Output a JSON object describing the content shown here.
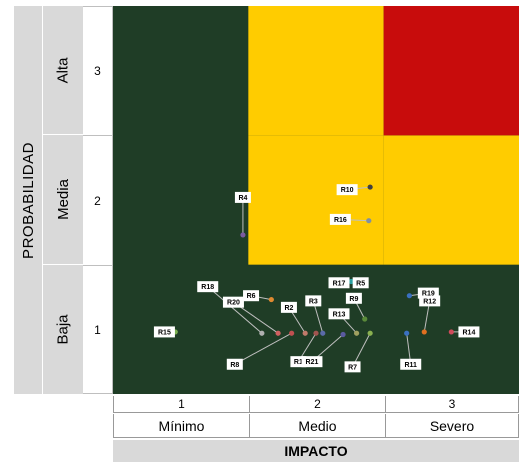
{
  "chart_data": {
    "type": "scatter",
    "ylabel": "PROBABILIDAD",
    "xlabel": "IMPACTO",
    "xlim": [
      0.5,
      3.5
    ],
    "ylim": [
      0.5,
      3.5
    ],
    "grid": false,
    "y_categories": [
      {
        "value": 3,
        "name": "Alta"
      },
      {
        "value": 2,
        "name": "Media"
      },
      {
        "value": 1,
        "name": "Baja"
      }
    ],
    "x_categories": [
      {
        "value": 1,
        "name": "Mínimo"
      },
      {
        "value": 2,
        "name": "Medio"
      },
      {
        "value": 3,
        "name": "Severo"
      }
    ],
    "zones": [
      {
        "color": "#1f3d26",
        "cells": "default"
      },
      {
        "color": "#ffcc00",
        "cells": [
          [
            2,
            2
          ],
          [
            3,
            2
          ],
          [
            2,
            3
          ]
        ]
      },
      {
        "color": "#c80c0c",
        "cells": [
          [
            3,
            3
          ]
        ]
      }
    ],
    "points": [
      {
        "label": "R1",
        "impact": 2.0,
        "prob": 0.97,
        "color": "#a0554f",
        "label_at": [
          1.87,
          0.75
        ]
      },
      {
        "label": "R2",
        "impact": 1.92,
        "prob": 0.97,
        "color": "#c07a6a",
        "label_at": [
          1.8,
          1.17
        ]
      },
      {
        "label": "R3",
        "impact": 2.05,
        "prob": 0.97,
        "color": "#5a6aa8",
        "label_at": [
          1.98,
          1.22
        ]
      },
      {
        "label": "R4",
        "impact": 1.46,
        "prob": 1.73,
        "color": "#7a5aa0",
        "label_at": [
          1.46,
          2.02
        ]
      },
      {
        "label": "R5",
        "impact": 2.26,
        "prob": 1.37,
        "color": "#2aa0a0",
        "label_at": [
          2.33,
          1.36
        ]
      },
      {
        "label": "R6",
        "impact": 1.67,
        "prob": 1.23,
        "color": "#e08a30",
        "label_at": [
          1.52,
          1.26
        ]
      },
      {
        "label": "R7",
        "impact": 2.4,
        "prob": 0.97,
        "color": "#8ab050",
        "label_at": [
          2.27,
          0.71
        ]
      },
      {
        "label": "R8",
        "impact": 1.82,
        "prob": 0.97,
        "color": "#c05050",
        "label_at": [
          1.4,
          0.73
        ]
      },
      {
        "label": "R9",
        "impact": 2.36,
        "prob": 1.08,
        "color": "#5a8a3a",
        "label_at": [
          2.28,
          1.24
        ]
      },
      {
        "label": "R10",
        "impact": 2.4,
        "prob": 2.1,
        "color": "#404040",
        "label_at": [
          2.23,
          2.08
        ]
      },
      {
        "label": "R11",
        "impact": 2.67,
        "prob": 0.97,
        "color": "#3a70c0",
        "label_at": [
          2.7,
          0.73
        ]
      },
      {
        "label": "R12",
        "impact": 2.8,
        "prob": 0.98,
        "color": "#e07020",
        "label_at": [
          2.84,
          1.22
        ]
      },
      {
        "label": "R13",
        "impact": 2.3,
        "prob": 0.97,
        "color": "#a0a060",
        "label_at": [
          2.17,
          1.12
        ]
      },
      {
        "label": "R14",
        "impact": 3.0,
        "prob": 0.98,
        "color": "#d04a5a",
        "label_at": [
          3.13,
          0.98
        ]
      },
      {
        "label": "R15",
        "impact": 0.96,
        "prob": 0.98,
        "color": "#7ab050",
        "label_at": [
          0.88,
          0.98
        ]
      },
      {
        "label": "R16",
        "impact": 2.39,
        "prob": 1.84,
        "color": "#8090a0",
        "label_at": [
          2.18,
          1.85
        ]
      },
      {
        "label": "R17",
        "impact": 2.12,
        "prob": 1.37,
        "color": "#2aa0a0",
        "label_at": [
          2.17,
          1.36
        ]
      },
      {
        "label": "R18",
        "impact": 1.6,
        "prob": 0.97,
        "color": "#b0b0b0",
        "label_at": [
          1.2,
          1.33
        ]
      },
      {
        "label": "R19",
        "impact": 2.69,
        "prob": 1.26,
        "color": "#3a70c0",
        "label_at": [
          2.83,
          1.28
        ]
      },
      {
        "label": "R20",
        "impact": 1.72,
        "prob": 0.97,
        "color": "#d06060",
        "label_at": [
          1.39,
          1.21
        ]
      },
      {
        "label": "R21",
        "impact": 2.2,
        "prob": 0.96,
        "color": "#5a5aa0",
        "label_at": [
          1.97,
          0.75
        ]
      }
    ]
  }
}
